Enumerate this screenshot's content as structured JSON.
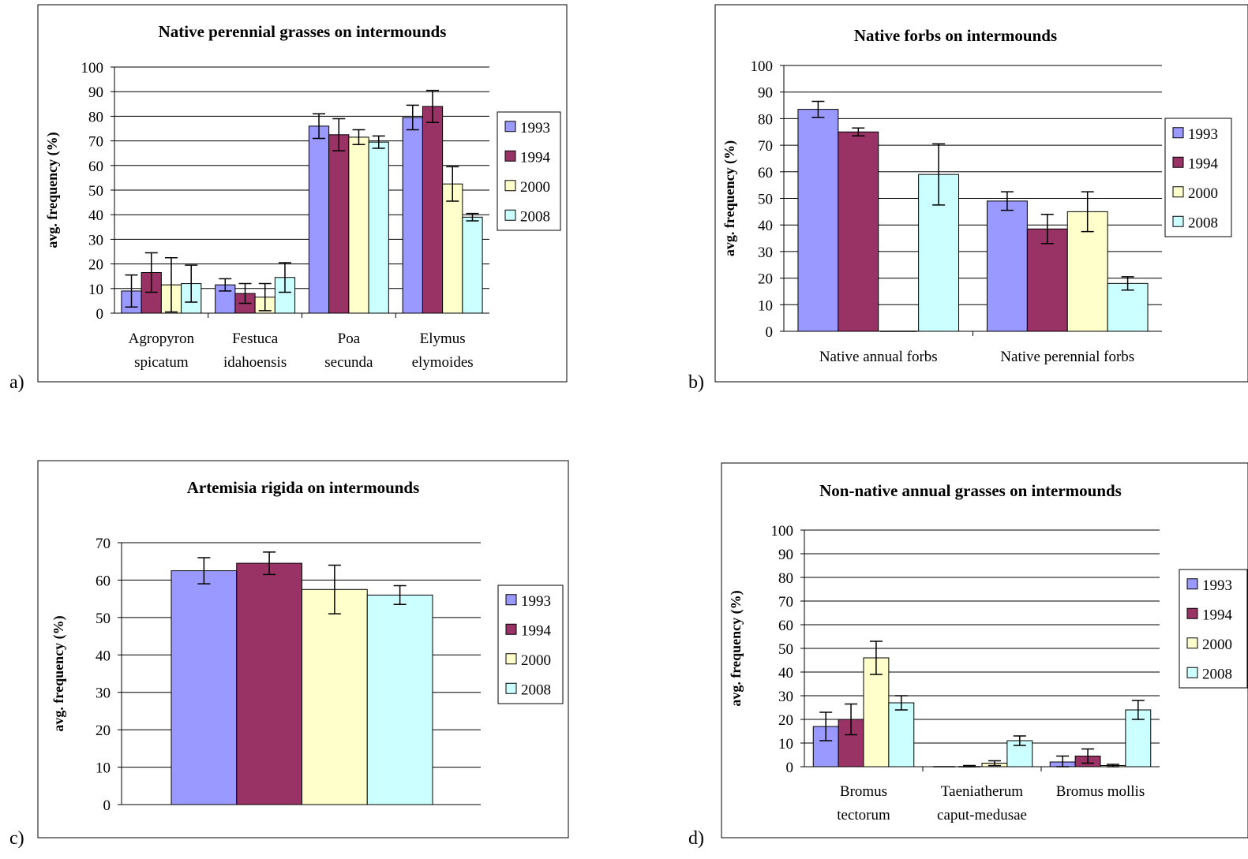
{
  "panel_labels": [
    "a)",
    "b)",
    "c)",
    "d)"
  ],
  "chart_data": [
    {
      "type": "bar",
      "title": "Native perennial grasses on intermounds",
      "ylabel": "avg. frequency (%)",
      "xlabel": "",
      "ylim": [
        0,
        100
      ],
      "yticks": [
        0,
        10,
        20,
        30,
        40,
        50,
        60,
        70,
        80,
        90,
        100
      ],
      "grid": true,
      "legend_position": "right",
      "categories": [
        [
          "Agropyron",
          "spicatum"
        ],
        [
          "Festuca",
          "idahoensis"
        ],
        [
          "Poa",
          "secunda"
        ],
        [
          "Elymus",
          "elymoides"
        ]
      ],
      "series": [
        {
          "name": "1993",
          "color": "#9999ff",
          "values": [
            9,
            11.5,
            76,
            79.5
          ],
          "errors": [
            6.5,
            2.5,
            5,
            5
          ]
        },
        {
          "name": "1994",
          "color": "#993366",
          "values": [
            16.5,
            8,
            72.5,
            84
          ],
          "errors": [
            8,
            4,
            6.5,
            6.5
          ]
        },
        {
          "name": "2000",
          "color": "#ffffcc",
          "values": [
            11.5,
            6.5,
            71.5,
            52.5
          ],
          "errors": [
            11,
            5.5,
            3,
            7
          ]
        },
        {
          "name": "2008",
          "color": "#ccffff",
          "values": [
            12,
            14.5,
            69.5,
            39
          ],
          "errors": [
            7.5,
            6,
            2.5,
            1.5
          ]
        }
      ]
    },
    {
      "type": "bar",
      "title": "Native forbs on intermounds",
      "ylabel": "avg. frequency (%)",
      "xlabel": "",
      "ylim": [
        0,
        100
      ],
      "yticks": [
        0,
        10,
        20,
        30,
        40,
        50,
        60,
        70,
        80,
        90,
        100
      ],
      "grid": true,
      "legend_position": "right",
      "categories": [
        [
          "Native annual forbs"
        ],
        [
          "Native perennial forbs"
        ]
      ],
      "series": [
        {
          "name": "1993",
          "color": "#9999ff",
          "values": [
            83.5,
            49
          ],
          "errors": [
            3,
            3.5
          ]
        },
        {
          "name": "1994",
          "color": "#993366",
          "values": [
            75,
            38.5
          ],
          "errors": [
            1.5,
            5.5
          ]
        },
        {
          "name": "2000",
          "color": "#ffffcc",
          "values": [
            0,
            45
          ],
          "errors": [
            0,
            7.5
          ]
        },
        {
          "name": "2008",
          "color": "#ccffff",
          "values": [
            59,
            18
          ],
          "errors": [
            11.5,
            2.5
          ]
        }
      ]
    },
    {
      "type": "bar",
      "title": "Artemisia rigida on intermounds",
      "ylabel": "avg. frequency (%)",
      "xlabel": "",
      "ylim": [
        0,
        70
      ],
      "yticks": [
        0,
        10,
        20,
        30,
        40,
        50,
        60,
        70
      ],
      "grid": true,
      "legend_position": "right",
      "categories": [
        [
          ""
        ]
      ],
      "series": [
        {
          "name": "1993",
          "color": "#9999ff",
          "values": [
            62.5
          ],
          "errors": [
            3.5
          ]
        },
        {
          "name": "1994",
          "color": "#993366",
          "values": [
            64.5
          ],
          "errors": [
            3
          ]
        },
        {
          "name": "2000",
          "color": "#ffffcc",
          "values": [
            57.5
          ],
          "errors": [
            6.5
          ]
        },
        {
          "name": "2008",
          "color": "#ccffff",
          "values": [
            56
          ],
          "errors": [
            2.5
          ]
        }
      ]
    },
    {
      "type": "bar",
      "title": "Non-native annual grasses on intermounds",
      "ylabel": "avg. frequency (%)",
      "xlabel": "",
      "ylim": [
        0,
        100
      ],
      "yticks": [
        0,
        10,
        20,
        30,
        40,
        50,
        60,
        70,
        80,
        90,
        100
      ],
      "grid": true,
      "legend_position": "right",
      "categories": [
        [
          "Bromus",
          "tectorum"
        ],
        [
          "Taeniatherum",
          "caput-medusae"
        ],
        [
          "Bromus mollis"
        ]
      ],
      "series": [
        {
          "name": "1993",
          "color": "#9999ff",
          "values": [
            17,
            0,
            2
          ],
          "errors": [
            6,
            0,
            2.5
          ]
        },
        {
          "name": "1994",
          "color": "#993366",
          "values": [
            20,
            0,
            4.5
          ],
          "errors": [
            6.5,
            0.5,
            3
          ]
        },
        {
          "name": "2000",
          "color": "#ffffcc",
          "values": [
            46,
            1.5,
            0.5
          ],
          "errors": [
            7,
            1,
            0.5
          ]
        },
        {
          "name": "2008",
          "color": "#ccffff",
          "values": [
            27,
            11,
            24
          ],
          "errors": [
            3,
            2,
            4
          ]
        }
      ]
    }
  ]
}
